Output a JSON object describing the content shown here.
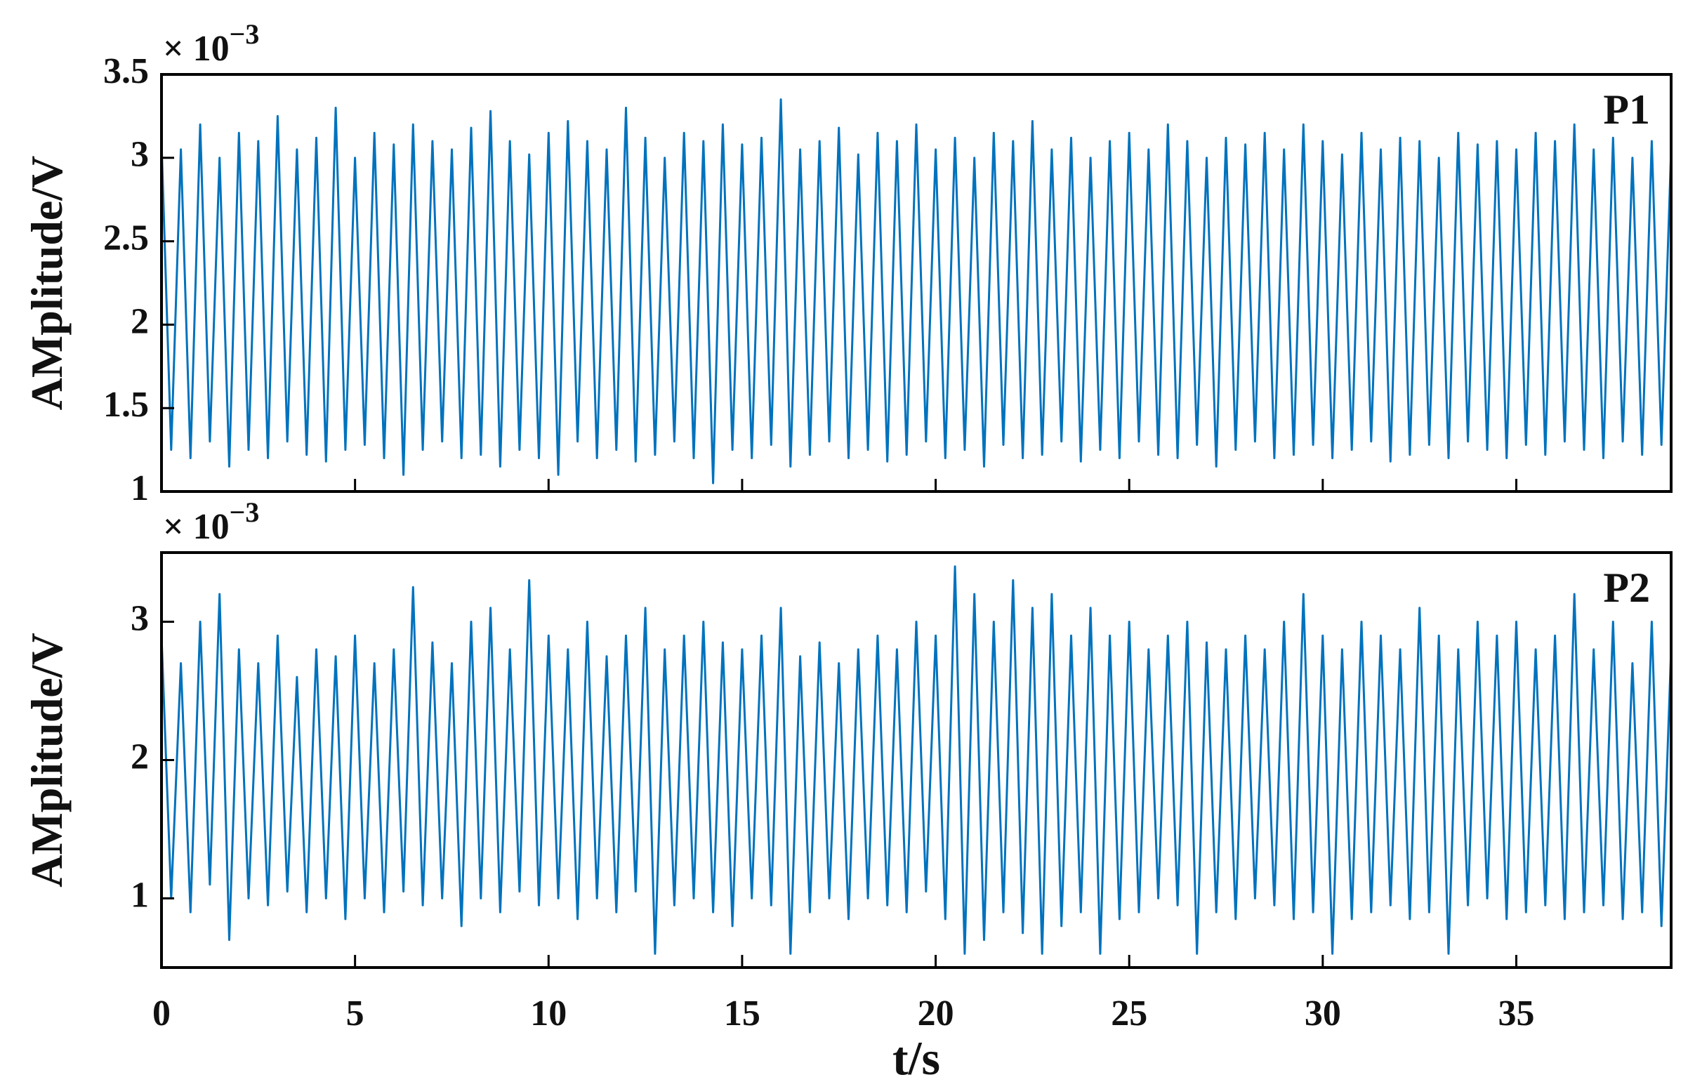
{
  "chart_data": [
    {
      "type": "line",
      "annotation": "P1",
      "ylabel": "AMplitude/V",
      "multiplier": "× 10",
      "multiplier_exponent": "−3",
      "xlim": [
        0,
        39
      ],
      "xticks": [
        0,
        5,
        10,
        15,
        20,
        25,
        30,
        35
      ],
      "show_xtick_labels": false,
      "ylim": [
        1,
        3.5
      ],
      "yticks": [
        1,
        1.5,
        2,
        2.5,
        3,
        3.5
      ],
      "x": [
        0,
        0.25,
        0.5,
        0.75,
        1,
        1.25,
        1.5,
        1.75,
        2,
        2.25,
        2.5,
        2.75,
        3,
        3.25,
        3.5,
        3.75,
        4,
        4.25,
        4.5,
        4.75,
        5,
        5.25,
        5.5,
        5.75,
        6,
        6.25,
        6.5,
        6.75,
        7,
        7.25,
        7.5,
        7.75,
        8,
        8.25,
        8.5,
        8.75,
        9,
        9.25,
        9.5,
        9.75,
        10,
        10.25,
        10.5,
        10.75,
        11,
        11.25,
        11.5,
        11.75,
        12,
        12.25,
        12.5,
        12.75,
        13,
        13.25,
        13.5,
        13.75,
        14,
        14.25,
        14.5,
        14.75,
        15,
        15.25,
        15.5,
        15.75,
        16,
        16.25,
        16.5,
        16.75,
        17,
        17.25,
        17.5,
        17.75,
        18,
        18.25,
        18.5,
        18.75,
        19,
        19.25,
        19.5,
        19.75,
        20,
        20.25,
        20.5,
        20.75,
        21,
        21.25,
        21.5,
        21.75,
        22,
        22.25,
        22.5,
        22.75,
        23,
        23.25,
        23.5,
        23.75,
        24,
        24.25,
        24.5,
        24.75,
        25,
        25.25,
        25.5,
        25.75,
        26,
        26.25,
        26.5,
        26.75,
        27,
        27.25,
        27.5,
        27.75,
        28,
        28.25,
        28.5,
        28.75,
        29,
        29.25,
        29.5,
        29.75,
        30,
        30.25,
        30.5,
        30.75,
        31,
        31.25,
        31.5,
        31.75,
        32,
        32.25,
        32.5,
        32.75,
        33,
        33.25,
        33.5,
        33.75,
        34,
        34.25,
        34.5,
        34.75,
        35,
        35.25,
        35.5,
        35.75,
        36,
        36.25,
        36.5,
        36.75,
        37,
        37.25,
        37.5,
        37.75,
        38,
        38.25,
        38.5,
        38.75,
        39
      ],
      "series": [
        {
          "color": "#0072bd",
          "values": [
            3.1,
            1.25,
            3.05,
            1.2,
            3.2,
            1.3,
            3.0,
            1.15,
            3.15,
            1.25,
            3.1,
            1.2,
            3.25,
            1.3,
            3.05,
            1.22,
            3.12,
            1.18,
            3.3,
            1.25,
            3.0,
            1.28,
            3.15,
            1.2,
            3.08,
            1.1,
            3.2,
            1.25,
            3.1,
            1.3,
            3.05,
            1.2,
            3.18,
            1.22,
            3.28,
            1.15,
            3.1,
            1.25,
            3.02,
            1.2,
            3.15,
            1.1,
            3.22,
            1.3,
            3.1,
            1.2,
            3.05,
            1.25,
            3.3,
            1.18,
            3.12,
            1.22,
            3.0,
            1.3,
            3.15,
            1.2,
            3.1,
            1.05,
            3.2,
            1.25,
            3.08,
            1.2,
            3.12,
            1.28,
            3.35,
            1.15,
            3.05,
            1.22,
            3.1,
            1.3,
            3.18,
            1.2,
            3.02,
            1.25,
            3.15,
            1.18,
            3.1,
            1.22,
            3.2,
            1.3,
            3.05,
            1.2,
            3.12,
            1.25,
            3.0,
            1.15,
            3.15,
            1.28,
            3.1,
            1.2,
            3.22,
            1.22,
            3.05,
            1.3,
            3.12,
            1.18,
            3.0,
            1.25,
            3.1,
            1.2,
            3.15,
            1.3,
            3.05,
            1.22,
            3.2,
            1.2,
            3.1,
            1.28,
            3.0,
            1.15,
            3.12,
            1.25,
            3.08,
            1.3,
            3.15,
            1.2,
            3.05,
            1.22,
            3.2,
            1.28,
            3.1,
            1.2,
            3.02,
            1.25,
            3.15,
            1.3,
            3.05,
            1.18,
            3.12,
            1.22,
            3.1,
            1.28,
            3.0,
            1.2,
            3.15,
            1.3,
            3.08,
            1.25,
            3.1,
            1.2,
            3.05,
            1.28,
            3.15,
            1.22,
            3.1,
            1.3,
            3.2,
            1.25,
            3.05,
            1.2,
            3.12,
            1.3,
            3.0,
            1.22,
            3.1,
            1.28,
            3.05
          ]
        }
      ]
    },
    {
      "type": "line",
      "annotation": "P2",
      "ylabel": "AMplitude/V",
      "multiplier": "× 10",
      "multiplier_exponent": "−3",
      "xlabel": "t/s",
      "xlim": [
        0,
        39
      ],
      "xticks": [
        0,
        5,
        10,
        15,
        20,
        25,
        30,
        35
      ],
      "show_xtick_labels": true,
      "ylim": [
        0.5,
        3.5
      ],
      "yticks": [
        1,
        2,
        3
      ],
      "x": [
        0,
        0.25,
        0.5,
        0.75,
        1,
        1.25,
        1.5,
        1.75,
        2,
        2.25,
        2.5,
        2.75,
        3,
        3.25,
        3.5,
        3.75,
        4,
        4.25,
        4.5,
        4.75,
        5,
        5.25,
        5.5,
        5.75,
        6,
        6.25,
        6.5,
        6.75,
        7,
        7.25,
        7.5,
        7.75,
        8,
        8.25,
        8.5,
        8.75,
        9,
        9.25,
        9.5,
        9.75,
        10,
        10.25,
        10.5,
        10.75,
        11,
        11.25,
        11.5,
        11.75,
        12,
        12.25,
        12.5,
        12.75,
        13,
        13.25,
        13.5,
        13.75,
        14,
        14.25,
        14.5,
        14.75,
        15,
        15.25,
        15.5,
        15.75,
        16,
        16.25,
        16.5,
        16.75,
        17,
        17.25,
        17.5,
        17.75,
        18,
        18.25,
        18.5,
        18.75,
        19,
        19.25,
        19.5,
        19.75,
        20,
        20.25,
        20.5,
        20.75,
        21,
        21.25,
        21.5,
        21.75,
        22,
        22.25,
        22.5,
        22.75,
        23,
        23.25,
        23.5,
        23.75,
        24,
        24.25,
        24.5,
        24.75,
        25,
        25.25,
        25.5,
        25.75,
        26,
        26.25,
        26.5,
        26.75,
        27,
        27.25,
        27.5,
        27.75,
        28,
        28.25,
        28.5,
        28.75,
        29,
        29.25,
        29.5,
        29.75,
        30,
        30.25,
        30.5,
        30.75,
        31,
        31.25,
        31.5,
        31.75,
        32,
        32.25,
        32.5,
        32.75,
        33,
        33.25,
        33.5,
        33.75,
        34,
        34.25,
        34.5,
        34.75,
        35,
        35.25,
        35.5,
        35.75,
        36,
        36.25,
        36.5,
        36.75,
        37,
        37.25,
        37.5,
        37.75,
        38,
        38.25,
        38.5,
        38.75,
        39
      ],
      "series": [
        {
          "color": "#0072bd",
          "values": [
            2.9,
            1.0,
            2.7,
            0.9,
            3.0,
            1.1,
            3.2,
            0.7,
            2.8,
            1.0,
            2.7,
            0.95,
            2.9,
            1.05,
            2.6,
            0.9,
            2.8,
            1.0,
            2.75,
            0.85,
            2.9,
            1.0,
            2.7,
            0.9,
            2.8,
            1.05,
            3.25,
            0.95,
            2.85,
            1.0,
            2.7,
            0.8,
            3.0,
            1.0,
            3.1,
            0.9,
            2.8,
            1.05,
            3.3,
            0.95,
            2.9,
            1.0,
            2.8,
            0.85,
            3.0,
            1.0,
            2.75,
            0.9,
            2.9,
            1.05,
            3.1,
            0.6,
            2.8,
            0.95,
            2.9,
            1.0,
            3.0,
            0.9,
            2.85,
            0.8,
            2.8,
            1.0,
            2.9,
            0.95,
            3.1,
            0.6,
            2.75,
            0.9,
            2.85,
            1.0,
            2.7,
            0.85,
            2.8,
            1.0,
            2.9,
            0.95,
            2.8,
            0.9,
            3.0,
            1.05,
            2.9,
            0.85,
            3.4,
            0.6,
            3.2,
            0.7,
            3.0,
            0.9,
            3.3,
            0.75,
            3.1,
            0.6,
            3.2,
            0.8,
            2.9,
            0.9,
            3.1,
            0.6,
            2.9,
            0.85,
            3.0,
            0.9,
            2.8,
            1.0,
            2.9,
            0.95,
            3.0,
            0.6,
            2.85,
            0.9,
            2.8,
            0.85,
            2.9,
            1.0,
            2.8,
            0.95,
            3.0,
            0.85,
            3.2,
            0.9,
            2.9,
            0.6,
            2.8,
            0.85,
            3.0,
            0.9,
            2.9,
            0.95,
            2.8,
            0.85,
            3.1,
            0.9,
            2.9,
            0.6,
            2.8,
            0.95,
            3.0,
            1.0,
            2.9,
            0.85,
            3.0,
            0.9,
            2.8,
            0.95,
            2.9,
            0.85,
            3.2,
            0.9,
            2.8,
            0.95,
            3.0,
            0.85,
            2.7,
            0.9,
            3.0,
            0.8,
            2.8
          ]
        }
      ]
    }
  ]
}
